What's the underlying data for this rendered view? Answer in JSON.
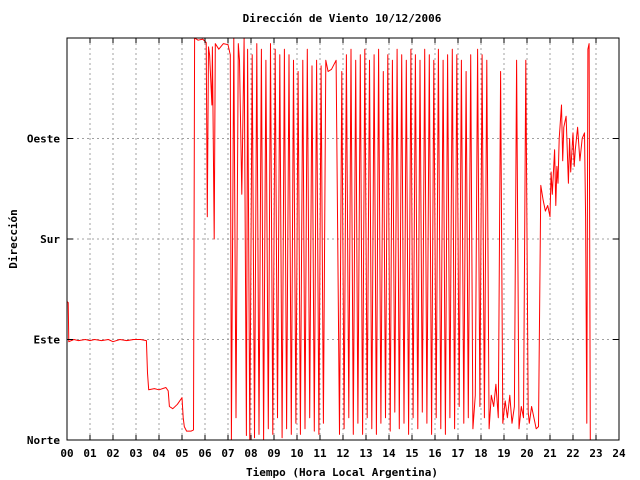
{
  "chart_data": {
    "type": "line",
    "title": "Dirección de Viento 10/12/2006",
    "xlabel": "Tiempo (Hora Local Argentina)",
    "ylabel": "Dirección",
    "xlim": [
      0,
      24
    ],
    "ylim": [
      0,
      360
    ],
    "x_ticks": [
      {
        "value": 0,
        "label": "00"
      },
      {
        "value": 1,
        "label": "01"
      },
      {
        "value": 2,
        "label": "02"
      },
      {
        "value": 3,
        "label": "03"
      },
      {
        "value": 4,
        "label": "04"
      },
      {
        "value": 5,
        "label": "05"
      },
      {
        "value": 6,
        "label": "06"
      },
      {
        "value": 7,
        "label": "07"
      },
      {
        "value": 8,
        "label": "08"
      },
      {
        "value": 9,
        "label": "09"
      },
      {
        "value": 10,
        "label": "10"
      },
      {
        "value": 11,
        "label": "11"
      },
      {
        "value": 12,
        "label": "12"
      },
      {
        "value": 13,
        "label": "13"
      },
      {
        "value": 14,
        "label": "14"
      },
      {
        "value": 15,
        "label": "15"
      },
      {
        "value": 16,
        "label": "16"
      },
      {
        "value": 17,
        "label": "17"
      },
      {
        "value": 18,
        "label": "18"
      },
      {
        "value": 19,
        "label": "19"
      },
      {
        "value": 20,
        "label": "20"
      },
      {
        "value": 21,
        "label": "21"
      },
      {
        "value": 22,
        "label": "22"
      },
      {
        "value": 23,
        "label": "23"
      },
      {
        "value": 24,
        "label": "24"
      }
    ],
    "y_ticks": [
      {
        "value": 0,
        "label": "Norte"
      },
      {
        "value": 90,
        "label": "Este"
      },
      {
        "value": 180,
        "label": "Sur"
      },
      {
        "value": 270,
        "label": "Oeste"
      }
    ],
    "grid": true,
    "series_color": "#ff0000",
    "series": [
      {
        "values": [
          [
            0.0,
            124
          ],
          [
            0.05,
            123
          ],
          [
            0.08,
            88
          ],
          [
            0.3,
            90
          ],
          [
            0.5,
            89
          ],
          [
            0.8,
            90
          ],
          [
            1.0,
            89
          ],
          [
            1.2,
            90
          ],
          [
            1.5,
            89
          ],
          [
            1.8,
            90
          ],
          [
            2.0,
            88
          ],
          [
            2.3,
            90
          ],
          [
            2.6,
            89
          ],
          [
            2.9,
            90
          ],
          [
            3.2,
            90
          ],
          [
            3.45,
            89
          ],
          [
            3.5,
            60
          ],
          [
            3.55,
            45
          ],
          [
            3.8,
            46
          ],
          [
            4.0,
            45
          ],
          [
            4.3,
            47
          ],
          [
            4.4,
            44
          ],
          [
            4.45,
            30
          ],
          [
            4.6,
            28
          ],
          [
            4.8,
            32
          ],
          [
            5.0,
            38
          ],
          [
            5.05,
            20
          ],
          [
            5.1,
            12
          ],
          [
            5.2,
            8
          ],
          [
            5.4,
            8
          ],
          [
            5.5,
            9
          ],
          [
            5.55,
            360
          ],
          [
            5.7,
            358
          ],
          [
            5.9,
            359
          ],
          [
            6.05,
            356
          ],
          [
            6.1,
            200
          ],
          [
            6.15,
            352
          ],
          [
            6.2,
            345
          ],
          [
            6.3,
            300
          ],
          [
            6.32,
            352
          ],
          [
            6.4,
            180
          ],
          [
            6.45,
            355
          ],
          [
            6.6,
            350
          ],
          [
            6.8,
            355
          ],
          [
            7.0,
            354
          ],
          [
            7.1,
            345
          ],
          [
            7.15,
            0
          ],
          [
            7.25,
            360
          ],
          [
            7.35,
            20
          ],
          [
            7.45,
            355
          ],
          [
            7.5,
            340
          ],
          [
            7.6,
            220
          ],
          [
            7.7,
            360
          ],
          [
            7.8,
            4
          ],
          [
            7.85,
            350
          ],
          [
            7.95,
            0
          ],
          [
            8.05,
            345
          ],
          [
            8.15,
            2
          ],
          [
            8.25,
            355
          ],
          [
            8.35,
            5
          ],
          [
            8.45,
            350
          ],
          [
            8.55,
            0
          ],
          [
            8.65,
            340
          ],
          [
            8.75,
            10
          ],
          [
            8.85,
            355
          ],
          [
            8.95,
            5
          ],
          [
            9.05,
            350
          ],
          [
            9.15,
            20
          ],
          [
            9.25,
            345
          ],
          [
            9.35,
            2
          ],
          [
            9.45,
            350
          ],
          [
            9.55,
            10
          ],
          [
            9.65,
            345
          ],
          [
            9.75,
            5
          ],
          [
            9.85,
            340
          ],
          [
            9.95,
            15
          ],
          [
            10.05,
            330
          ],
          [
            10.15,
            5
          ],
          [
            10.25,
            340
          ],
          [
            10.35,
            10
          ],
          [
            10.45,
            350
          ],
          [
            10.55,
            20
          ],
          [
            10.65,
            335
          ],
          [
            10.75,
            8
          ],
          [
            10.85,
            340
          ],
          [
            10.95,
            5
          ],
          [
            11.05,
            335
          ],
          [
            11.15,
            15
          ],
          [
            11.25,
            340
          ],
          [
            11.35,
            330
          ],
          [
            11.5,
            332
          ],
          [
            11.7,
            340
          ],
          [
            11.85,
            5
          ],
          [
            11.95,
            330
          ],
          [
            12.05,
            10
          ],
          [
            12.15,
            345
          ],
          [
            12.25,
            20
          ],
          [
            12.35,
            350
          ],
          [
            12.45,
            5
          ],
          [
            12.55,
            340
          ],
          [
            12.65,
            15
          ],
          [
            12.75,
            345
          ],
          [
            12.85,
            5
          ],
          [
            12.95,
            350
          ],
          [
            13.05,
            20
          ],
          [
            13.15,
            340
          ],
          [
            13.25,
            10
          ],
          [
            13.35,
            345
          ],
          [
            13.45,
            5
          ],
          [
            13.55,
            350
          ],
          [
            13.65,
            15
          ],
          [
            13.75,
            330
          ],
          [
            13.85,
            20
          ],
          [
            13.95,
            345
          ],
          [
            14.05,
            8
          ],
          [
            14.15,
            340
          ],
          [
            14.25,
            25
          ],
          [
            14.35,
            350
          ],
          [
            14.45,
            10
          ],
          [
            14.55,
            345
          ],
          [
            14.65,
            15
          ],
          [
            14.75,
            340
          ],
          [
            14.85,
            5
          ],
          [
            14.95,
            350
          ],
          [
            15.05,
            20
          ],
          [
            15.15,
            345
          ],
          [
            15.25,
            10
          ],
          [
            15.35,
            340
          ],
          [
            15.45,
            25
          ],
          [
            15.55,
            350
          ],
          [
            15.65,
            15
          ],
          [
            15.75,
            345
          ],
          [
            15.85,
            5
          ],
          [
            15.95,
            340
          ],
          [
            16.05,
            20
          ],
          [
            16.15,
            350
          ],
          [
            16.25,
            10
          ],
          [
            16.35,
            340
          ],
          [
            16.45,
            5
          ],
          [
            16.55,
            345
          ],
          [
            16.65,
            20
          ],
          [
            16.75,
            350
          ],
          [
            16.85,
            10
          ],
          [
            16.95,
            345
          ],
          [
            17.05,
            30
          ],
          [
            17.15,
            340
          ],
          [
            17.25,
            15
          ],
          [
            17.35,
            330
          ],
          [
            17.45,
            20
          ],
          [
            17.55,
            345
          ],
          [
            17.65,
            10
          ],
          [
            17.75,
            40
          ],
          [
            17.85,
            350
          ],
          [
            17.95,
            30
          ],
          [
            18.05,
            345
          ],
          [
            18.15,
            20
          ],
          [
            18.25,
            340
          ],
          [
            18.35,
            10
          ],
          [
            18.45,
            40
          ],
          [
            18.55,
            30
          ],
          [
            18.65,
            50
          ],
          [
            18.75,
            20
          ],
          [
            18.85,
            330
          ],
          [
            18.95,
            15
          ],
          [
            19.05,
            35
          ],
          [
            19.15,
            20
          ],
          [
            19.25,
            40
          ],
          [
            19.35,
            15
          ],
          [
            19.45,
            30
          ],
          [
            19.55,
            340
          ],
          [
            19.65,
            10
          ],
          [
            19.75,
            30
          ],
          [
            19.85,
            20
          ],
          [
            19.95,
            340
          ],
          [
            20.05,
            25
          ],
          [
            20.1,
            15
          ],
          [
            20.2,
            30
          ],
          [
            20.3,
            20
          ],
          [
            20.4,
            10
          ],
          [
            20.5,
            12
          ],
          [
            20.6,
            228
          ],
          [
            20.7,
            215
          ],
          [
            20.8,
            205
          ],
          [
            20.9,
            210
          ],
          [
            21.0,
            200
          ],
          [
            21.05,
            240
          ],
          [
            21.1,
            220
          ],
          [
            21.2,
            260
          ],
          [
            21.25,
            210
          ],
          [
            21.3,
            245
          ],
          [
            21.35,
            230
          ],
          [
            21.4,
            270
          ],
          [
            21.5,
            300
          ],
          [
            21.55,
            250
          ],
          [
            21.6,
            280
          ],
          [
            21.7,
            290
          ],
          [
            21.8,
            230
          ],
          [
            21.85,
            270
          ],
          [
            21.9,
            240
          ],
          [
            22.0,
            275
          ],
          [
            22.05,
            245
          ],
          [
            22.1,
            260
          ],
          [
            22.2,
            280
          ],
          [
            22.3,
            250
          ],
          [
            22.4,
            270
          ],
          [
            22.5,
            275
          ],
          [
            22.55,
            200
          ],
          [
            22.6,
            15
          ],
          [
            22.65,
            350
          ],
          [
            22.7,
            355
          ],
          [
            22.75,
            0
          ]
        ]
      }
    ]
  }
}
